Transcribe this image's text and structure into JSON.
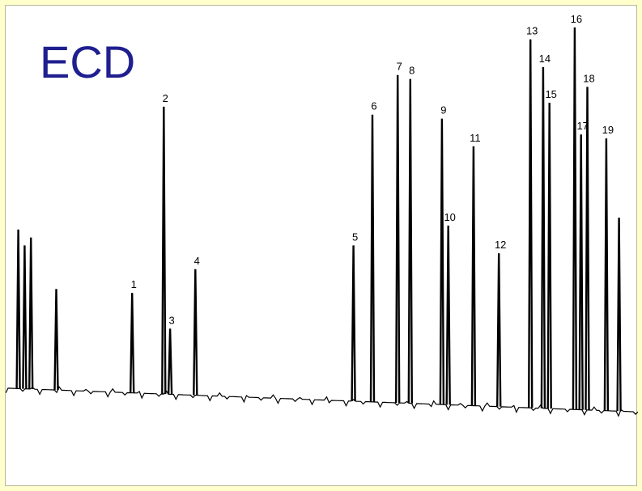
{
  "chart_data": {
    "type": "line",
    "title": "ECD",
    "xlabel": "",
    "ylabel": "",
    "grid": false,
    "color": "#000000",
    "title_color": "#1f1f8f",
    "ylim": [
      0,
      100
    ],
    "baseline": {
      "start": 8,
      "end": 2
    },
    "peaks": [
      {
        "label": "",
        "x": 2,
        "y": 48
      },
      {
        "label": "",
        "x": 3,
        "y": 44
      },
      {
        "label": "",
        "x": 4,
        "y": 46
      },
      {
        "label": "",
        "x": 8,
        "y": 33
      },
      {
        "label": "1",
        "x": 20,
        "y": 32
      },
      {
        "label": "2",
        "x": 25,
        "y": 79
      },
      {
        "label": "3",
        "x": 26,
        "y": 23
      },
      {
        "label": "4",
        "x": 30,
        "y": 38
      },
      {
        "label": "5",
        "x": 55,
        "y": 44
      },
      {
        "label": "6",
        "x": 58,
        "y": 77
      },
      {
        "label": "7",
        "x": 62,
        "y": 87
      },
      {
        "label": "8",
        "x": 64,
        "y": 86
      },
      {
        "label": "9",
        "x": 69,
        "y": 76
      },
      {
        "label": "10",
        "x": 70,
        "y": 49
      },
      {
        "label": "11",
        "x": 74,
        "y": 69
      },
      {
        "label": "12",
        "x": 78,
        "y": 42
      },
      {
        "label": "13",
        "x": 83,
        "y": 96
      },
      {
        "label": "14",
        "x": 85,
        "y": 89
      },
      {
        "label": "15",
        "x": 86,
        "y": 80
      },
      {
        "label": "16",
        "x": 90,
        "y": 99
      },
      {
        "label": "17",
        "x": 91,
        "y": 72
      },
      {
        "label": "18",
        "x": 92,
        "y": 84
      },
      {
        "label": "19",
        "x": 95,
        "y": 71
      },
      {
        "label": "",
        "x": 97,
        "y": 51
      }
    ]
  }
}
